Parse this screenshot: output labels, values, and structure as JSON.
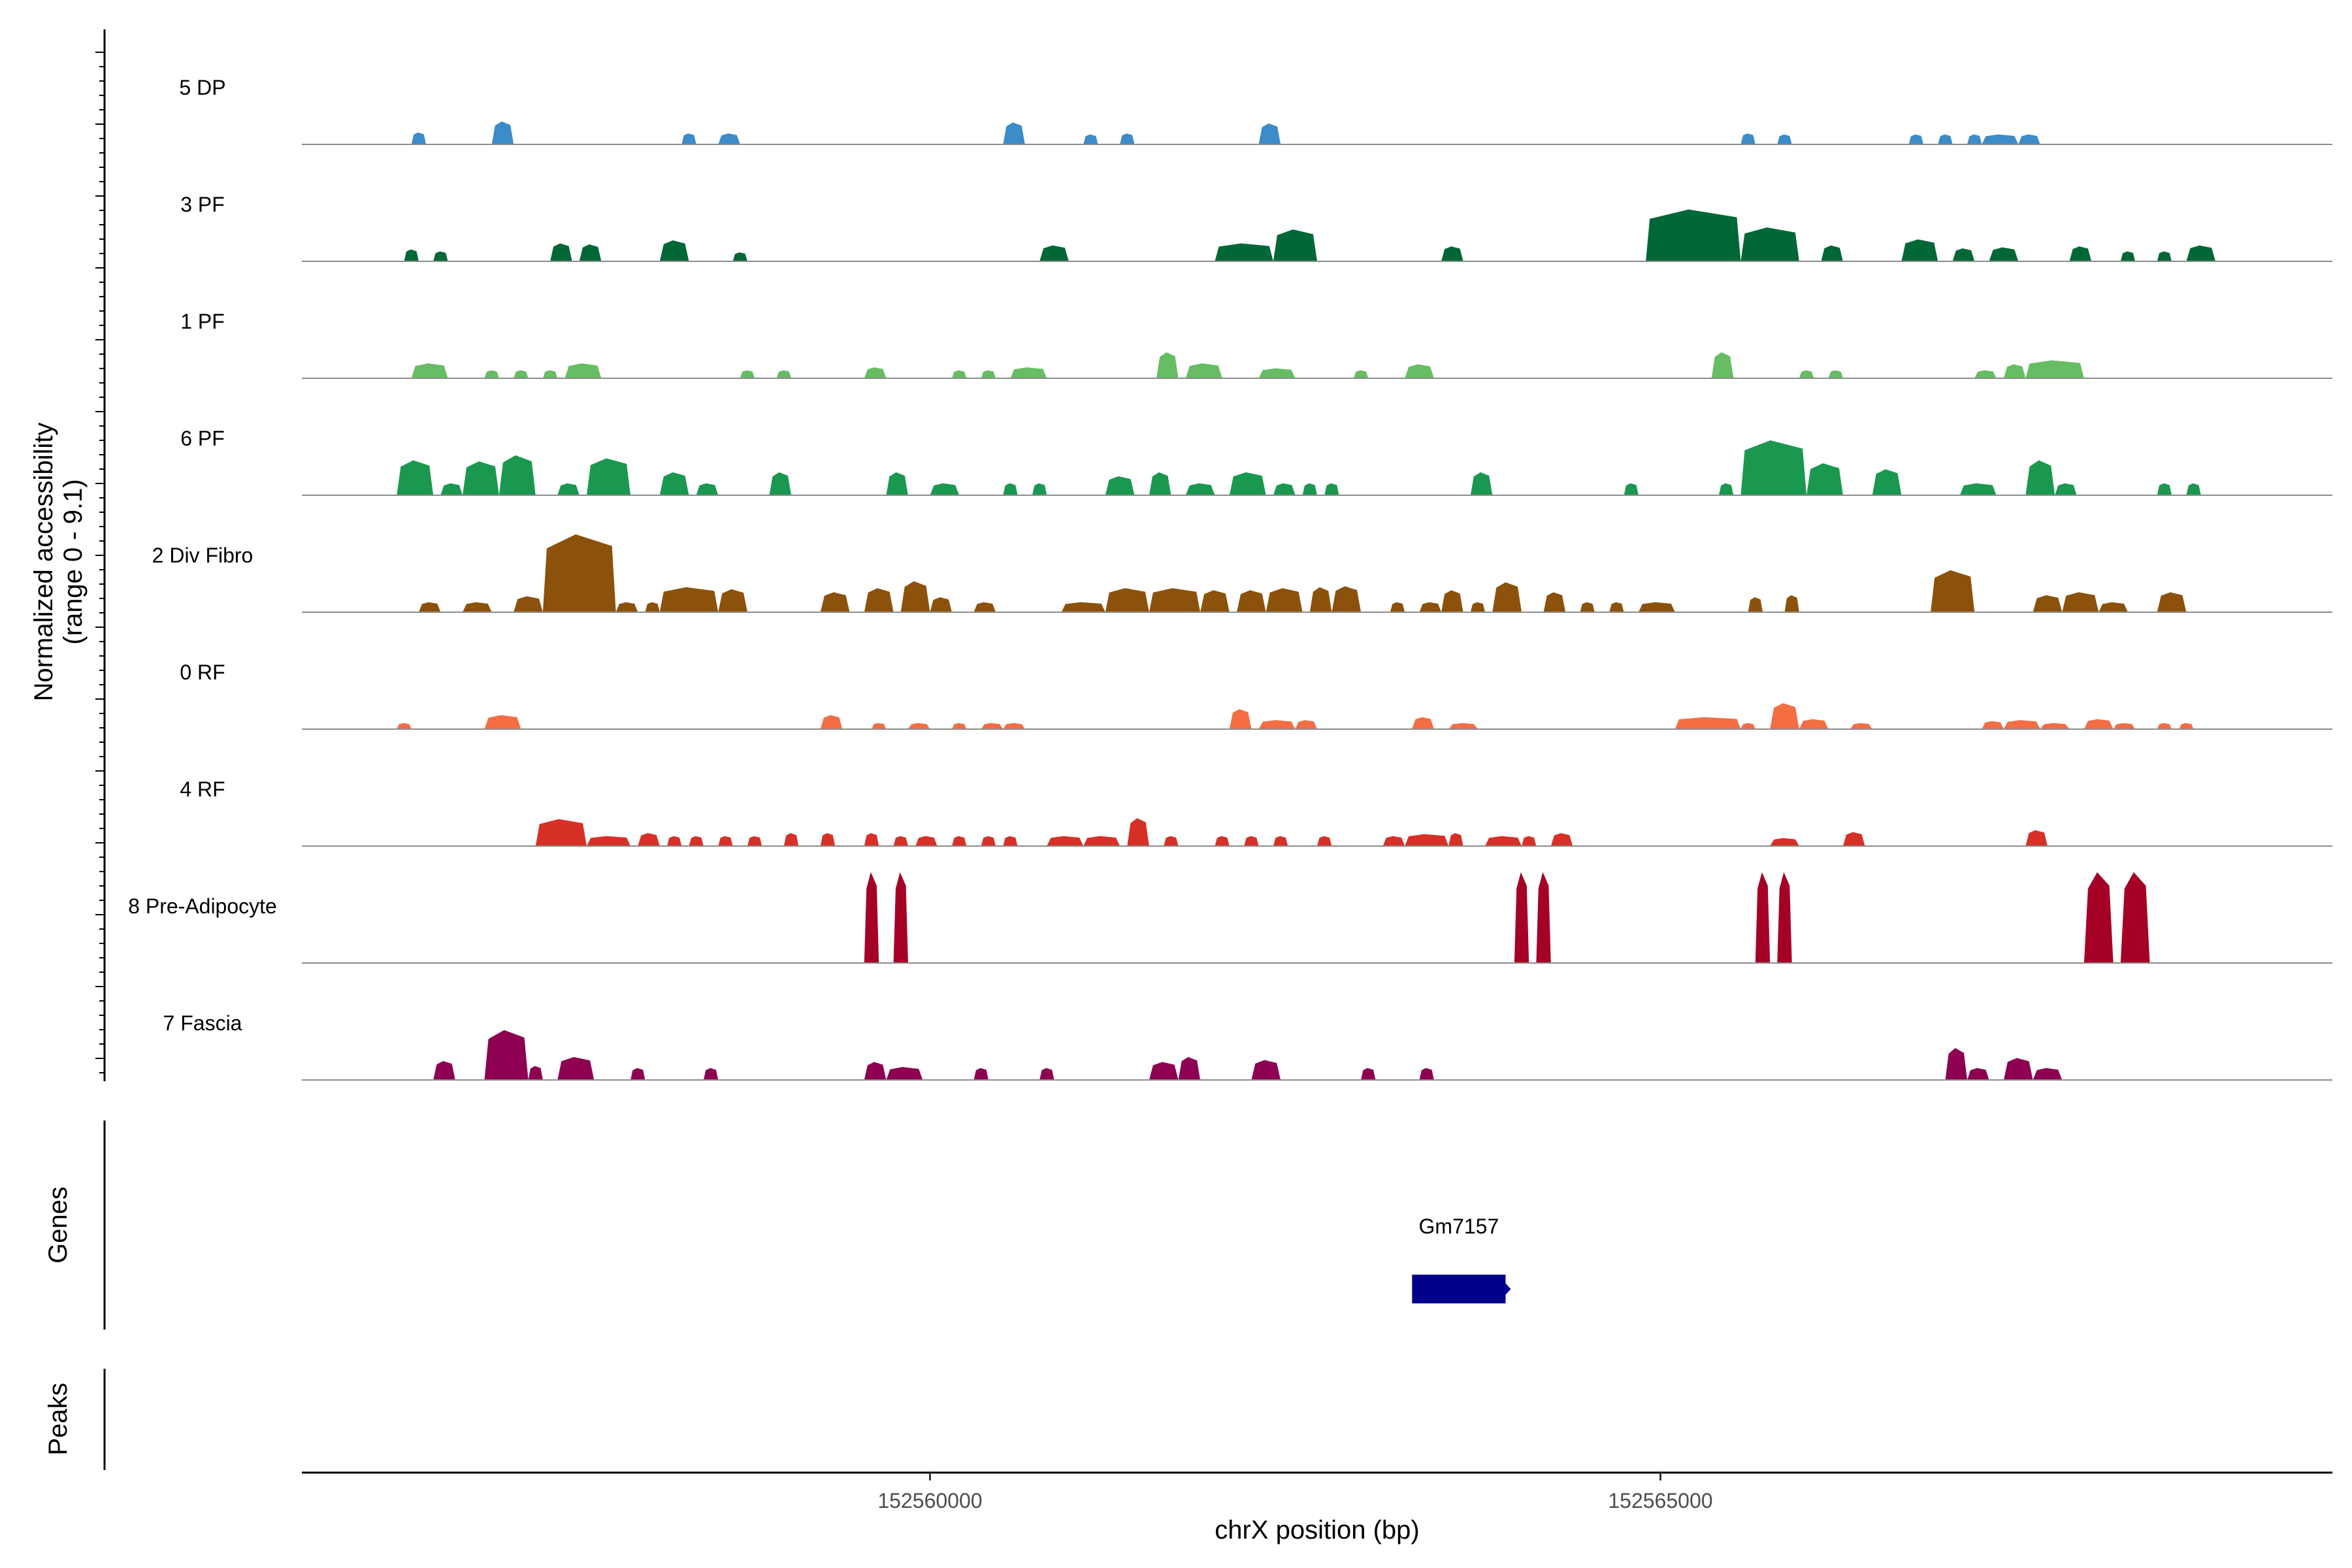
{
  "chart_data": {
    "type": "area",
    "title": "",
    "xlabel": "chrX position (bp)",
    "ylabel_line1": "Normalized accessibility",
    "ylabel_line2": "(range 0 - 9.1)",
    "ylim": [
      0,
      9.1
    ],
    "xlim": [
      152555700,
      152569600
    ],
    "x_ticks": [
      152560000,
      152565000
    ],
    "x_tick_labels": [
      "152560000",
      "152565000"
    ],
    "tracks": [
      {
        "name": "5 DP",
        "color": "#3B8CC8",
        "peaks": [
          [
            152556.45,
            152556.55,
            1.2
          ],
          [
            152557.0,
            152557.15,
            2.3
          ],
          [
            152558.3,
            152558.4,
            1.1
          ],
          [
            152558.55,
            152558.7,
            1.1
          ],
          [
            152560.5,
            152560.65,
            2.2
          ],
          [
            152561.05,
            152561.15,
            1.0
          ],
          [
            152561.3,
            152561.4,
            1.1
          ],
          [
            152562.25,
            152562.4,
            2.1
          ],
          [
            152565.55,
            152565.65,
            1.1
          ],
          [
            152565.8,
            152565.9,
            1.0
          ],
          [
            152566.7,
            152566.8,
            1.0
          ],
          [
            152566.9,
            152567.0,
            1.0
          ],
          [
            152567.1,
            152567.2,
            1.0
          ],
          [
            152567.2,
            152567.45,
            1.0
          ],
          [
            152567.45,
            152567.6,
            1.0
          ]
        ]
      },
      {
        "name": "3 PF",
        "color": "#006837",
        "peaks": [
          [
            152556.4,
            152556.5,
            1.2
          ],
          [
            152556.6,
            152556.7,
            1.0
          ],
          [
            152557.4,
            152557.55,
            1.8
          ],
          [
            152557.6,
            152557.75,
            1.7
          ],
          [
            152558.15,
            152558.35,
            2.1
          ],
          [
            152558.65,
            152558.75,
            0.9
          ],
          [
            152560.75,
            152560.95,
            1.6
          ],
          [
            152561.95,
            152562.35,
            1.8
          ],
          [
            152562.35,
            152562.65,
            3.2
          ],
          [
            152563.5,
            152563.65,
            1.5
          ],
          [
            152564.9,
            152565.55,
            5.2
          ],
          [
            152565.55,
            152565.95,
            3.4
          ],
          [
            152566.1,
            152566.25,
            1.6
          ],
          [
            152566.65,
            152566.9,
            2.2
          ],
          [
            152567.0,
            152567.15,
            1.3
          ],
          [
            152567.25,
            152567.45,
            1.4
          ],
          [
            152567.8,
            152567.95,
            1.5
          ],
          [
            152568.15,
            152568.25,
            1.0
          ],
          [
            152568.4,
            152568.5,
            1.0
          ],
          [
            152568.6,
            152568.8,
            1.6
          ]
        ]
      },
      {
        "name": "1 PF",
        "color": "#66BD63",
        "peaks": [
          [
            152556.45,
            152556.7,
            1.5
          ],
          [
            152556.95,
            152557.05,
            0.8
          ],
          [
            152557.15,
            152557.25,
            0.8
          ],
          [
            152557.35,
            152557.45,
            0.8
          ],
          [
            152557.5,
            152557.75,
            1.5
          ],
          [
            152558.7,
            152558.8,
            0.8
          ],
          [
            152558.95,
            152559.05,
            0.8
          ],
          [
            152559.55,
            152559.7,
            1.1
          ],
          [
            152560.15,
            152560.25,
            0.8
          ],
          [
            152560.35,
            152560.45,
            0.8
          ],
          [
            152560.55,
            152560.8,
            1.1
          ],
          [
            152561.55,
            152561.7,
            2.6
          ],
          [
            152561.75,
            152562.0,
            1.5
          ],
          [
            152562.25,
            152562.5,
            1.0
          ],
          [
            152562.9,
            152563.0,
            0.8
          ],
          [
            152563.25,
            152563.45,
            1.4
          ],
          [
            152565.35,
            152565.5,
            2.6
          ],
          [
            152565.95,
            152566.05,
            0.8
          ],
          [
            152566.15,
            152566.25,
            0.8
          ],
          [
            152567.15,
            152567.3,
            0.8
          ],
          [
            152567.35,
            152567.5,
            1.4
          ],
          [
            152567.5,
            152567.9,
            1.8
          ]
        ]
      },
      {
        "name": "6 PF",
        "color": "#1A9850",
        "peaks": [
          [
            152556.35,
            152556.6,
            3.5
          ],
          [
            152556.65,
            152556.8,
            1.2
          ],
          [
            152556.8,
            152557.05,
            3.4
          ],
          [
            152557.05,
            152557.3,
            4.0
          ],
          [
            152557.45,
            152557.6,
            1.2
          ],
          [
            152557.65,
            152557.95,
            3.7
          ],
          [
            152558.15,
            152558.35,
            2.3
          ],
          [
            152558.4,
            152558.55,
            1.2
          ],
          [
            152558.9,
            152559.05,
            2.3
          ],
          [
            152559.7,
            152559.85,
            2.3
          ],
          [
            152560.0,
            152560.2,
            1.2
          ],
          [
            152560.5,
            152560.6,
            1.2
          ],
          [
            152560.7,
            152560.8,
            1.2
          ],
          [
            152561.2,
            152561.4,
            1.9
          ],
          [
            152561.5,
            152561.65,
            2.3
          ],
          [
            152561.75,
            152561.95,
            1.2
          ],
          [
            152562.05,
            152562.3,
            2.3
          ],
          [
            152562.35,
            152562.5,
            1.2
          ],
          [
            152562.55,
            152562.65,
            1.2
          ],
          [
            152562.7,
            152562.8,
            1.2
          ],
          [
            152563.7,
            152563.85,
            2.3
          ],
          [
            152564.75,
            152564.85,
            1.2
          ],
          [
            152565.4,
            152565.5,
            1.2
          ],
          [
            152565.55,
            152566.0,
            5.5
          ],
          [
            152566.0,
            152566.25,
            3.2
          ],
          [
            152566.45,
            152566.65,
            2.6
          ],
          [
            152567.05,
            152567.3,
            1.2
          ],
          [
            152567.5,
            152567.7,
            3.5
          ],
          [
            152567.7,
            152567.85,
            1.2
          ],
          [
            152568.4,
            152568.5,
            1.2
          ],
          [
            152568.6,
            152568.7,
            1.2
          ]
        ]
      },
      {
        "name": "2 Div Fibro",
        "color": "#8C510A",
        "peaks": [
          [
            152556.5,
            152556.65,
            1.0
          ],
          [
            152556.8,
            152557.0,
            1.0
          ],
          [
            152557.15,
            152557.35,
            1.6
          ],
          [
            152557.35,
            152557.85,
            7.8
          ],
          [
            152557.85,
            152558.0,
            1.0
          ],
          [
            152558.05,
            152558.15,
            1.0
          ],
          [
            152558.15,
            152558.55,
            2.5
          ],
          [
            152558.55,
            152558.75,
            2.3
          ],
          [
            152559.25,
            152559.45,
            2.0
          ],
          [
            152559.55,
            152559.75,
            2.4
          ],
          [
            152559.8,
            152560.0,
            3.1
          ],
          [
            152560.0,
            152560.15,
            1.5
          ],
          [
            152560.3,
            152560.45,
            1.0
          ],
          [
            152560.9,
            152561.2,
            1.0
          ],
          [
            152561.2,
            152561.5,
            2.4
          ],
          [
            152561.5,
            152561.85,
            2.4
          ],
          [
            152561.85,
            152562.05,
            2.2
          ],
          [
            152562.1,
            152562.3,
            2.2
          ],
          [
            152562.3,
            152562.55,
            2.4
          ],
          [
            152562.6,
            152562.75,
            2.5
          ],
          [
            152562.75,
            152562.95,
            2.6
          ],
          [
            152563.15,
            152563.25,
            1.0
          ],
          [
            152563.35,
            152563.5,
            1.0
          ],
          [
            152563.5,
            152563.65,
            2.2
          ],
          [
            152563.7,
            152563.8,
            1.0
          ],
          [
            152563.85,
            152564.05,
            3.0
          ],
          [
            152564.2,
            152564.35,
            2.0
          ],
          [
            152564.45,
            152564.55,
            1.0
          ],
          [
            152564.65,
            152564.75,
            1.0
          ],
          [
            152564.85,
            152565.1,
            1.0
          ],
          [
            152565.6,
            152565.7,
            1.5
          ],
          [
            152565.85,
            152565.95,
            1.7
          ],
          [
            152566.85,
            152567.15,
            4.2
          ],
          [
            152567.55,
            152567.75,
            1.7
          ],
          [
            152567.75,
            152568.0,
            2.0
          ],
          [
            152568.0,
            152568.2,
            1.0
          ],
          [
            152568.4,
            152568.6,
            2.0
          ]
        ]
      },
      {
        "name": "0 RF",
        "color": "#F46D43",
        "peaks": [
          [
            152556.35,
            152556.45,
            0.6
          ],
          [
            152556.95,
            152557.2,
            1.4
          ],
          [
            152559.25,
            152559.4,
            1.4
          ],
          [
            152559.6,
            152559.7,
            0.6
          ],
          [
            152559.85,
            152560.0,
            0.6
          ],
          [
            152560.15,
            152560.25,
            0.6
          ],
          [
            152560.35,
            152560.5,
            0.6
          ],
          [
            152560.5,
            152560.65,
            0.6
          ],
          [
            152562.05,
            152562.2,
            2.0
          ],
          [
            152562.25,
            152562.5,
            0.9
          ],
          [
            152562.5,
            152562.65,
            0.9
          ],
          [
            152563.3,
            152563.45,
            1.2
          ],
          [
            152563.55,
            152563.75,
            0.6
          ],
          [
            152565.1,
            152565.55,
            1.2
          ],
          [
            152565.55,
            152565.65,
            0.6
          ],
          [
            152565.75,
            152565.95,
            2.6
          ],
          [
            152565.95,
            152566.15,
            1.0
          ],
          [
            152566.3,
            152566.45,
            0.6
          ],
          [
            152567.2,
            152567.35,
            0.8
          ],
          [
            152567.35,
            152567.6,
            0.9
          ],
          [
            152567.6,
            152567.8,
            0.6
          ],
          [
            152567.9,
            152568.1,
            1.0
          ],
          [
            152568.1,
            152568.25,
            0.6
          ],
          [
            152568.4,
            152568.5,
            0.6
          ],
          [
            152568.55,
            152568.65,
            0.6
          ]
        ]
      },
      {
        "name": "4 RF",
        "color": "#D73027",
        "peaks": [
          [
            152557.3,
            152557.65,
            2.7
          ],
          [
            152557.65,
            152557.95,
            1.0
          ],
          [
            152558.0,
            152558.15,
            1.3
          ],
          [
            152558.2,
            152558.3,
            1.0
          ],
          [
            152558.35,
            152558.45,
            1.0
          ],
          [
            152558.55,
            152558.65,
            1.0
          ],
          [
            152558.75,
            152558.85,
            1.0
          ],
          [
            152559.0,
            152559.1,
            1.3
          ],
          [
            152559.25,
            152559.35,
            1.3
          ],
          [
            152559.55,
            152559.65,
            1.3
          ],
          [
            152559.75,
            152559.85,
            1.0
          ],
          [
            152559.9,
            152560.05,
            1.0
          ],
          [
            152560.15,
            152560.25,
            1.0
          ],
          [
            152560.35,
            152560.45,
            1.0
          ],
          [
            152560.5,
            152560.6,
            1.0
          ],
          [
            152560.8,
            152561.05,
            1.0
          ],
          [
            152561.05,
            152561.3,
            1.0
          ],
          [
            152561.35,
            152561.5,
            2.8
          ],
          [
            152561.6,
            152561.7,
            1.0
          ],
          [
            152561.95,
            152562.05,
            1.0
          ],
          [
            152562.15,
            152562.25,
            1.0
          ],
          [
            152562.35,
            152562.45,
            1.0
          ],
          [
            152562.65,
            152562.75,
            1.0
          ],
          [
            152563.1,
            152563.25,
            1.0
          ],
          [
            152563.25,
            152563.55,
            1.2
          ],
          [
            152563.55,
            152563.65,
            1.3
          ],
          [
            152563.8,
            152564.05,
            1.0
          ],
          [
            152564.05,
            152564.15,
            1.0
          ],
          [
            152564.25,
            152564.4,
            1.3
          ],
          [
            152565.75,
            152565.95,
            0.8
          ],
          [
            152566.25,
            152566.4,
            1.4
          ],
          [
            152567.5,
            152567.65,
            1.6
          ]
        ]
      },
      {
        "name": "8 Pre-Adipocyte",
        "color": "#A50026",
        "peaks": [
          [
            152559.55,
            152559.65,
            9.1
          ],
          [
            152559.75,
            152559.85,
            9.1
          ],
          [
            152564.0,
            152564.1,
            9.1
          ],
          [
            152564.15,
            152564.25,
            9.1
          ],
          [
            152565.65,
            152565.75,
            9.1
          ],
          [
            152565.8,
            152565.9,
            9.1
          ],
          [
            152567.9,
            152568.1,
            9.1
          ],
          [
            152568.15,
            152568.35,
            9.1
          ]
        ]
      },
      {
        "name": "7 Fascia",
        "color": "#8E0152",
        "peaks": [
          [
            152556.6,
            152556.75,
            1.9
          ],
          [
            152556.95,
            152557.25,
            5.0
          ],
          [
            152557.25,
            152557.35,
            1.4
          ],
          [
            152557.45,
            152557.7,
            2.3
          ],
          [
            152557.95,
            152558.05,
            1.2
          ],
          [
            152558.45,
            152558.55,
            1.2
          ],
          [
            152559.55,
            152559.7,
            1.8
          ],
          [
            152559.7,
            152559.95,
            1.3
          ],
          [
            152560.3,
            152560.4,
            1.2
          ],
          [
            152560.75,
            152560.85,
            1.2
          ],
          [
            152561.5,
            152561.7,
            1.8
          ],
          [
            152561.7,
            152561.85,
            2.3
          ],
          [
            152562.2,
            152562.4,
            2.0
          ],
          [
            152562.95,
            152563.05,
            1.2
          ],
          [
            152563.35,
            152563.45,
            1.2
          ],
          [
            152566.95,
            152567.1,
            3.2
          ],
          [
            152567.1,
            152567.25,
            1.2
          ],
          [
            152567.35,
            152567.55,
            2.2
          ],
          [
            152567.55,
            152567.75,
            1.2
          ]
        ]
      }
    ],
    "genes_track": {
      "label": "Genes",
      "genes": [
        {
          "name": "Gm7157",
          "start": 152563300,
          "end": 152563940,
          "strand": "+",
          "color": "#00008B"
        }
      ]
    },
    "peaks_track": {
      "label": "Peaks",
      "peaks": []
    }
  }
}
